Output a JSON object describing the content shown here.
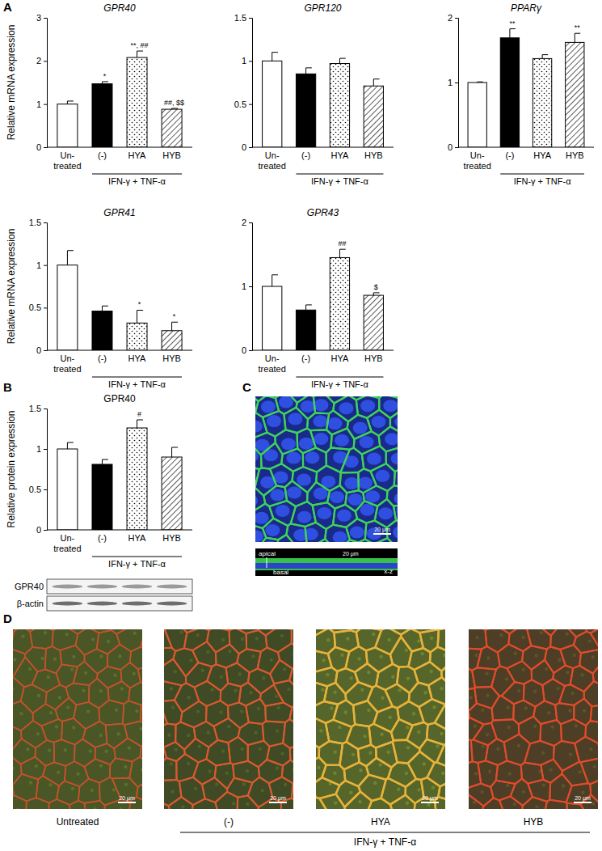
{
  "chart_data": [
    {
      "type": "bar",
      "title": "GPR40",
      "y_label": "Relative mRNA expression",
      "categories": [
        "Un-treated",
        "(-)",
        "HYA",
        "HYB"
      ],
      "group_label": "IFN-γ + TNF-α",
      "values": [
        1.0,
        1.47,
        2.08,
        0.88
      ],
      "errors": [
        0.07,
        0.05,
        0.15,
        0.02
      ],
      "significance": [
        null,
        "*",
        "**, ##",
        "##, $$"
      ],
      "ylim": [
        0,
        3
      ],
      "yticks": [
        0,
        1,
        2,
        3
      ]
    },
    {
      "type": "bar",
      "title": "GPR120",
      "categories": [
        "Un-treated",
        "(-)",
        "HYA",
        "HYB"
      ],
      "group_label": "IFN-γ + TNF-α",
      "values": [
        1.0,
        0.85,
        0.97,
        0.71
      ],
      "errors": [
        0.1,
        0.07,
        0.06,
        0.08
      ],
      "ylim": [
        0,
        1.5
      ],
      "yticks": [
        0,
        0.5,
        1,
        1.5
      ]
    },
    {
      "type": "bar",
      "title": "PPARγ",
      "categories": [
        "Un-treated",
        "(-)",
        "HYA",
        "HYB"
      ],
      "group_label": "IFN-γ + TNF-α",
      "values": [
        1.0,
        1.69,
        1.37,
        1.62
      ],
      "errors": [
        0.01,
        0.14,
        0.06,
        0.14
      ],
      "significance": [
        null,
        "**",
        null,
        "**"
      ],
      "ylim": [
        0,
        2
      ],
      "yticks": [
        0,
        1,
        2
      ]
    },
    {
      "type": "bar",
      "title": "GPR41",
      "y_label": "Relative mRNA expression",
      "categories": [
        "Un-treated",
        "(-)",
        "HYA",
        "HYB"
      ],
      "group_label": "IFN-γ + TNF-α",
      "values": [
        1.0,
        0.46,
        0.32,
        0.23
      ],
      "errors": [
        0.17,
        0.06,
        0.15,
        0.1
      ],
      "significance": [
        null,
        null,
        "*",
        "*"
      ],
      "ylim": [
        0,
        1.5
      ],
      "yticks": [
        0,
        0.5,
        1,
        1.5
      ]
    },
    {
      "type": "bar",
      "title": "GPR43",
      "categories": [
        "Un-treated",
        "(-)",
        "HYA",
        "HYB"
      ],
      "group_label": "IFN-γ + TNF-α",
      "values": [
        1.0,
        0.63,
        1.45,
        0.86
      ],
      "errors": [
        0.18,
        0.08,
        0.13,
        0.04
      ],
      "significance": [
        null,
        null,
        "##",
        "$"
      ],
      "ylim": [
        0,
        2
      ],
      "yticks": [
        0,
        1,
        2
      ]
    },
    {
      "type": "bar",
      "title": "GPR40",
      "y_label": "Relative protein expression",
      "categories": [
        "Un-treated",
        "(-)",
        "HYA",
        "HYB"
      ],
      "group_label": "IFN-γ + TNF-α",
      "values": [
        1.0,
        0.81,
        1.26,
        0.9
      ],
      "errors": [
        0.08,
        0.06,
        0.1,
        0.12
      ],
      "significance": [
        null,
        null,
        "#",
        null
      ],
      "ylim": [
        0,
        1.5
      ],
      "yticks": [
        0,
        0.5,
        1,
        1.5
      ]
    }
  ],
  "figure": {
    "panel_labels": [
      "A",
      "B",
      "C",
      "D"
    ],
    "blot_labels": [
      "GPR40",
      "β-actin"
    ],
    "scale_bar": "20 μm",
    "panel_c": {
      "apical": "apical",
      "basal": "basal",
      "view": "x-z"
    },
    "panel_d": {
      "labels": [
        "Untreated",
        "(-)",
        "HYA",
        "HYB"
      ],
      "group_label": "IFN-γ + TNF-α"
    }
  }
}
